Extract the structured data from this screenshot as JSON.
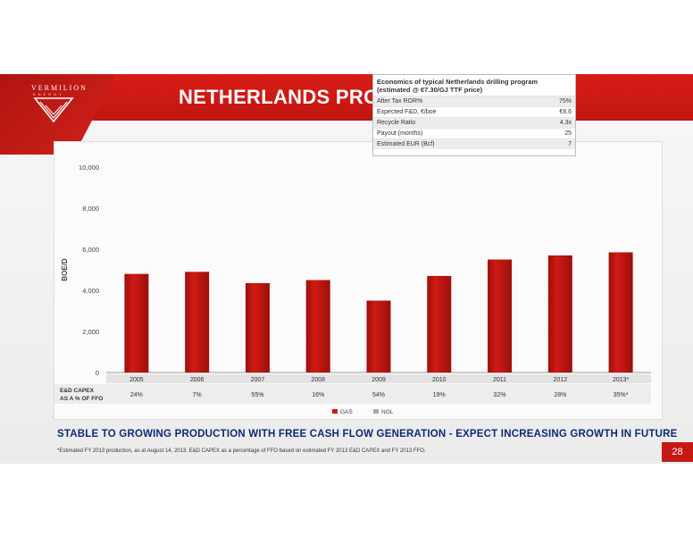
{
  "slide": {
    "logo_text": "VERMILION",
    "logo_sub": "ENERGY",
    "title": "NETHERLANDS PRODUCTION",
    "tagline": "STABLE TO GROWING PRODUCTION WITH FREE CASH FLOW GENERATION - EXPECT INCREASING GROWTH IN FUTURE",
    "footnote": "*Estimated FY 2013 production, as at August 14, 2013. E&D CAPEX as a percentage of FFO based on estimated FY 2013 E&D CAPEX and FY 2013 FFO.",
    "page_number": "28"
  },
  "economics": {
    "title_line1": "Economics of typical Netherlands drilling program",
    "title_line2": "(estimated @ €7.30/GJ TTF price)",
    "rows": [
      {
        "label": "After Tax ROR%",
        "value": "75%"
      },
      {
        "label": "Expected F&D, €/boe",
        "value": "€8.6"
      },
      {
        "label": "Recycle Ratio",
        "value": "4.3x"
      },
      {
        "label": "Payout (months)",
        "value": "25"
      },
      {
        "label": "Estimated EUR (Bcf)",
        "value": "7"
      }
    ]
  },
  "colors": {
    "bar": "#d01a14",
    "bar_dark": "#9c0f0b",
    "ngl": "#a7a7a7",
    "title_band": "#cf1c16",
    "tagline": "#0d2a78"
  },
  "chart_data": {
    "type": "bar",
    "ylabel": "BOE/D",
    "ylim": [
      0,
      10000
    ],
    "yticks": [
      0,
      2000,
      4000,
      6000,
      8000,
      10000
    ],
    "ytick_labels": [
      "0",
      "2,000",
      "4,000",
      "6,000",
      "8,000",
      "10,000"
    ],
    "categories": [
      "2005",
      "2006",
      "2007",
      "2008",
      "2009",
      "2010",
      "2011",
      "2012",
      "2013*"
    ],
    "series": [
      {
        "name": "GAS",
        "values": [
          4800,
          4900,
          4350,
          4500,
          3500,
          4700,
          5500,
          5700,
          5850
        ]
      },
      {
        "name": "NGL",
        "values": [
          0,
          0,
          0,
          0,
          0,
          0,
          0,
          0,
          0
        ]
      }
    ],
    "capex_label_line1": "E&D CAPEX",
    "capex_label_line2": "AS A % OF FFO",
    "capex_values": [
      "24%",
      "7%",
      "55%",
      "16%",
      "54%",
      "19%",
      "32%",
      "28%",
      "35%*"
    ],
    "grid": false,
    "legend": "bottom-center"
  }
}
